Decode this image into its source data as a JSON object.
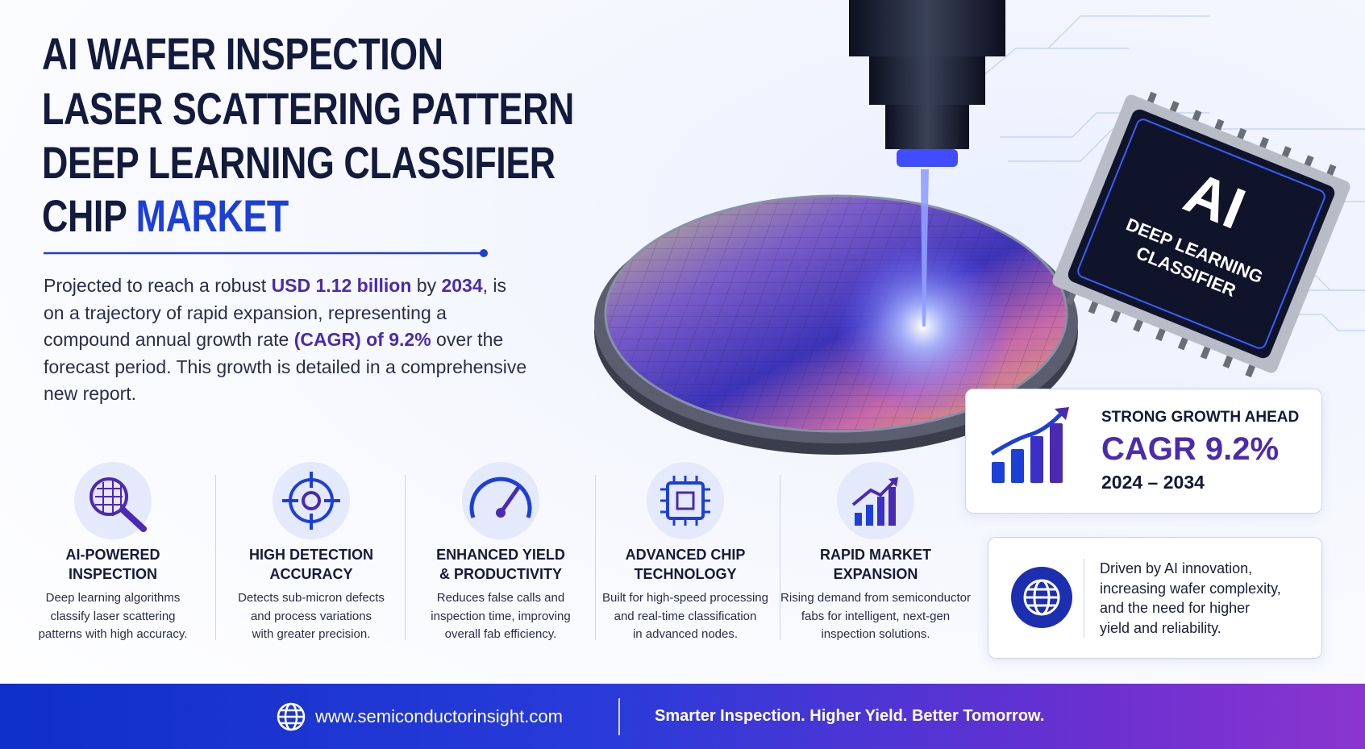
{
  "header": {
    "title_lines": [
      "AI WAFER INSPECTION",
      "LASER SCATTERING PATTERN",
      "DEEP LEARNING CLASSIFIER"
    ],
    "title_last": "CHIP",
    "title_highlight": "MARKET"
  },
  "intro": {
    "parts": [
      "Projected to reach a robust ",
      "USD 1.12 billion",
      " by ",
      "2034",
      ", is on a trajectory of rapid expansion, representing a compound annual growth rate ",
      "(CAGR) of 9.2%",
      " over the forecast period. This growth is detailed in a comprehensive new report."
    ]
  },
  "chip": {
    "label": "AI",
    "line1": "DEEP LEARNING",
    "line2": "CLASSIFIER"
  },
  "growth": {
    "heading": "STRONG GROWTH AHEAD",
    "cagr": "CAGR 9.2%",
    "period": "2024 – 2034"
  },
  "features": [
    {
      "title": [
        "AI-POWERED",
        "INSPECTION"
      ],
      "desc": [
        "Deep learning algorithms",
        "classify laser scattering",
        "patterns with high accuracy."
      ]
    },
    {
      "title": [
        "HIGH DETECTION",
        "ACCURACY"
      ],
      "desc": [
        "Detects sub-micron defects",
        "and process variations",
        "with greater precision."
      ]
    },
    {
      "title": [
        "ENHANCED YIELD",
        "& PRODUCTIVITY"
      ],
      "desc": [
        "Reduces false calls and",
        "inspection time, improving",
        "overall fab efficiency."
      ]
    },
    {
      "title": [
        "ADVANCED CHIP",
        "TECHNOLOGY"
      ],
      "desc": [
        "Built for high-speed processing",
        "and real-time classification",
        "in advanced nodes."
      ]
    },
    {
      "title": [
        "RAPID MARKET",
        "EXPANSION"
      ],
      "desc": [
        "Rising demand from semiconductor",
        "fabs for intelligent, next-gen",
        "inspection solutions."
      ]
    }
  ],
  "driver": {
    "lines": [
      "Driven by AI innovation,",
      "increasing wafer complexity,",
      "and the need for higher",
      "yield and reliability."
    ]
  },
  "footer": {
    "url": "www.semiconductorinsight.com",
    "tagline": "Smarter Inspection. Higher Yield. Better Tomorrow."
  }
}
